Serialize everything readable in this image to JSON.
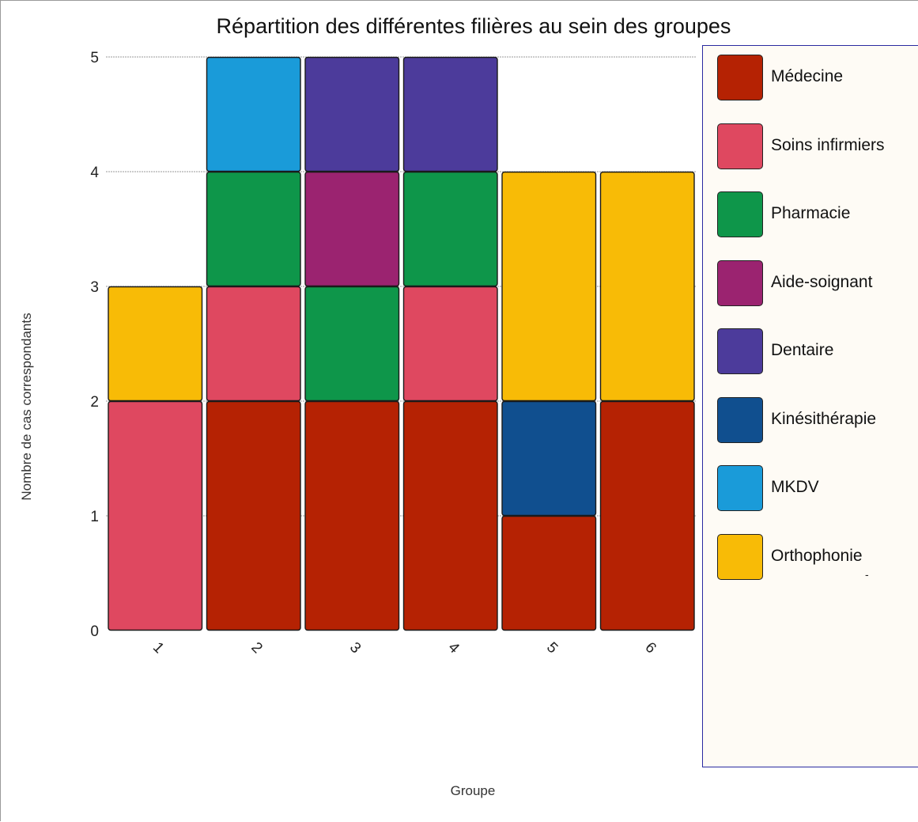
{
  "chart_data": {
    "type": "bar",
    "stacked": true,
    "title": "Répartition des différentes filières au sein des groupes",
    "xlabel": "Groupe",
    "ylabel": "Nombre de cas correspondants",
    "categories": [
      "1",
      "2",
      "3",
      "4",
      "5",
      "6"
    ],
    "ylim": [
      0,
      5
    ],
    "yticks": [
      "0",
      "1",
      "2",
      "3",
      "4",
      "5"
    ],
    "grid": true,
    "legend_position": "right",
    "legend_note": "-",
    "series": [
      {
        "name": "Médecine",
        "color": "#b52203",
        "values": [
          0,
          2,
          2,
          2,
          1,
          2
        ]
      },
      {
        "name": "Soins infirmiers",
        "color": "#df4860",
        "values": [
          2,
          1,
          0,
          1,
          0,
          0
        ]
      },
      {
        "name": "Pharmacie",
        "color": "#0e964a",
        "values": [
          0,
          1,
          1,
          1,
          0,
          0
        ]
      },
      {
        "name": "Aide-soignant",
        "color": "#9b2370",
        "values": [
          0,
          0,
          1,
          0,
          0,
          0
        ]
      },
      {
        "name": "Dentaire",
        "color": "#4c3b9b",
        "values": [
          0,
          0,
          1,
          1,
          0,
          0
        ]
      },
      {
        "name": "Kinésithérapie",
        "color": "#104f8f",
        "values": [
          0,
          0,
          0,
          0,
          1,
          0
        ]
      },
      {
        "name": "MKDV",
        "color": "#1a9bd9",
        "values": [
          0,
          1,
          0,
          0,
          0,
          0
        ]
      },
      {
        "name": "Orthophonie",
        "color": "#f8bb06",
        "values": [
          1,
          0,
          0,
          0,
          2,
          2
        ]
      }
    ]
  }
}
